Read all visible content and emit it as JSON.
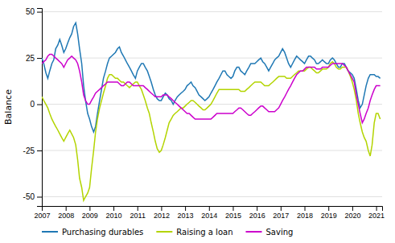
{
  "chart_data": {
    "type": "line",
    "ylabel": "Balance",
    "x": [
      2007.0,
      2007.08,
      2007.17,
      2007.25,
      2007.33,
      2007.42,
      2007.5,
      2007.58,
      2007.67,
      2007.75,
      2007.83,
      2007.92,
      2008.0,
      2008.08,
      2008.17,
      2008.25,
      2008.33,
      2008.42,
      2008.5,
      2008.58,
      2008.67,
      2008.75,
      2008.83,
      2008.92,
      2009.0,
      2009.08,
      2009.17,
      2009.25,
      2009.33,
      2009.42,
      2009.5,
      2009.58,
      2009.67,
      2009.75,
      2009.83,
      2009.92,
      2010.0,
      2010.08,
      2010.17,
      2010.25,
      2010.33,
      2010.42,
      2010.5,
      2010.58,
      2010.67,
      2010.75,
      2010.83,
      2010.92,
      2011.0,
      2011.08,
      2011.17,
      2011.25,
      2011.33,
      2011.42,
      2011.5,
      2011.58,
      2011.67,
      2011.75,
      2011.83,
      2011.92,
      2012.0,
      2012.08,
      2012.17,
      2012.25,
      2012.33,
      2012.42,
      2012.5,
      2012.58,
      2012.67,
      2012.75,
      2012.83,
      2012.92,
      2013.0,
      2013.08,
      2013.17,
      2013.25,
      2013.33,
      2013.42,
      2013.5,
      2013.58,
      2013.67,
      2013.75,
      2013.83,
      2013.92,
      2014.0,
      2014.08,
      2014.17,
      2014.25,
      2014.33,
      2014.42,
      2014.5,
      2014.58,
      2014.67,
      2014.75,
      2014.83,
      2014.92,
      2015.0,
      2015.08,
      2015.17,
      2015.25,
      2015.33,
      2015.42,
      2015.5,
      2015.58,
      2015.67,
      2015.75,
      2015.83,
      2015.92,
      2016.0,
      2016.08,
      2016.17,
      2016.25,
      2016.33,
      2016.42,
      2016.5,
      2016.58,
      2016.67,
      2016.75,
      2016.83,
      2016.92,
      2017.0,
      2017.08,
      2017.17,
      2017.25,
      2017.33,
      2017.42,
      2017.5,
      2017.58,
      2017.67,
      2017.75,
      2017.83,
      2017.92,
      2018.0,
      2018.08,
      2018.17,
      2018.25,
      2018.33,
      2018.42,
      2018.5,
      2018.58,
      2018.67,
      2018.75,
      2018.83,
      2018.92,
      2019.0,
      2019.08,
      2019.17,
      2019.25,
      2019.33,
      2019.42,
      2019.5,
      2019.58,
      2019.67,
      2019.75,
      2019.83,
      2019.92,
      2020.0,
      2020.08,
      2020.17,
      2020.25,
      2020.33,
      2020.42,
      2020.5,
      2020.58,
      2020.67,
      2020.75,
      2020.83,
      2020.92,
      2021.0,
      2021.08,
      2021.17
    ],
    "series": [
      {
        "name": "Purchasing durables",
        "color": "#1f78b4",
        "values": [
          25,
          22,
          17,
          14,
          18,
          22,
          24,
          30,
          32,
          35,
          32,
          28,
          30,
          33,
          36,
          38,
          42,
          44,
          38,
          30,
          22,
          10,
          2,
          -5,
          -8,
          -12,
          -15,
          -12,
          -5,
          2,
          8,
          14,
          18,
          22,
          25,
          26,
          27,
          28,
          30,
          31,
          28,
          26,
          24,
          22,
          20,
          18,
          16,
          14,
          18,
          20,
          22,
          22,
          20,
          18,
          15,
          12,
          8,
          5,
          3,
          2,
          2,
          4,
          6,
          5,
          3,
          2,
          0,
          2,
          4,
          5,
          6,
          7,
          8,
          10,
          11,
          12,
          10,
          9,
          7,
          5,
          4,
          3,
          2,
          3,
          4,
          6,
          8,
          10,
          12,
          14,
          16,
          18,
          18,
          16,
          15,
          14,
          15,
          18,
          20,
          20,
          18,
          17,
          16,
          18,
          20,
          22,
          22,
          22,
          23,
          24,
          25,
          23,
          22,
          20,
          18,
          20,
          22,
          24,
          25,
          26,
          28,
          30,
          28,
          25,
          22,
          20,
          22,
          24,
          26,
          25,
          24,
          23,
          22,
          24,
          26,
          26,
          25,
          24,
          22,
          22,
          23,
          24,
          23,
          22,
          22,
          24,
          25,
          24,
          22,
          20,
          20,
          22,
          22,
          20,
          18,
          17,
          16,
          14,
          8,
          2,
          -2,
          0,
          5,
          10,
          14,
          16,
          16,
          16,
          15,
          15,
          14
        ]
      },
      {
        "name": "Raising a loan",
        "color": "#b3d400",
        "values": [
          4,
          2,
          0,
          -2,
          -5,
          -8,
          -10,
          -12,
          -14,
          -16,
          -18,
          -20,
          -18,
          -16,
          -14,
          -16,
          -18,
          -22,
          -30,
          -40,
          -45,
          -52,
          -50,
          -48,
          -45,
          -35,
          -25,
          -15,
          -8,
          -2,
          2,
          6,
          10,
          14,
          16,
          16,
          15,
          14,
          14,
          13,
          12,
          12,
          11,
          10,
          9,
          10,
          11,
          12,
          12,
          10,
          8,
          5,
          2,
          -2,
          -5,
          -10,
          -15,
          -20,
          -24,
          -26,
          -25,
          -22,
          -18,
          -14,
          -10,
          -8,
          -6,
          -5,
          -4,
          -3,
          -2,
          -2,
          -1,
          0,
          1,
          2,
          2,
          1,
          0,
          -1,
          -2,
          -3,
          -3,
          -2,
          -1,
          0,
          2,
          4,
          6,
          8,
          8,
          8,
          8,
          8,
          8,
          8,
          8,
          8,
          8,
          8,
          7,
          7,
          7,
          8,
          9,
          10,
          11,
          12,
          12,
          12,
          12,
          11,
          10,
          10,
          10,
          11,
          12,
          13,
          14,
          15,
          15,
          15,
          15,
          14,
          14,
          14,
          15,
          16,
          17,
          18,
          18,
          18,
          18,
          19,
          20,
          20,
          19,
          18,
          17,
          17,
          18,
          19,
          19,
          19,
          20,
          22,
          23,
          22,
          20,
          19,
          19,
          20,
          20,
          20,
          18,
          15,
          12,
          8,
          2,
          -5,
          -10,
          -15,
          -18,
          -20,
          -25,
          -28,
          -22,
          -10,
          -5,
          -5,
          -8
        ]
      },
      {
        "name": "Saving",
        "color": "#cc00cc",
        "values": [
          22,
          23,
          24,
          26,
          27,
          27,
          26,
          25,
          24,
          23,
          22,
          20,
          22,
          24,
          25,
          26,
          25,
          24,
          22,
          18,
          12,
          5,
          2,
          0,
          0,
          2,
          4,
          6,
          7,
          8,
          9,
          10,
          11,
          12,
          12,
          12,
          12,
          12,
          12,
          11,
          10,
          10,
          11,
          12,
          12,
          11,
          10,
          10,
          10,
          10,
          10,
          10,
          9,
          8,
          7,
          6,
          5,
          4,
          4,
          4,
          4,
          5,
          5,
          5,
          4,
          3,
          2,
          1,
          0,
          -1,
          -2,
          -3,
          -4,
          -5,
          -5,
          -6,
          -7,
          -8,
          -8,
          -8,
          -8,
          -8,
          -8,
          -8,
          -8,
          -8,
          -7,
          -6,
          -5,
          -5,
          -5,
          -5,
          -5,
          -5,
          -5,
          -5,
          -5,
          -4,
          -3,
          -2,
          -2,
          -3,
          -4,
          -5,
          -6,
          -6,
          -5,
          -4,
          -3,
          -2,
          -1,
          -1,
          -2,
          -3,
          -4,
          -4,
          -4,
          -4,
          -3,
          -2,
          0,
          2,
          4,
          6,
          8,
          10,
          12,
          14,
          16,
          17,
          18,
          18,
          19,
          20,
          20,
          20,
          20,
          20,
          19,
          19,
          19,
          20,
          20,
          20,
          20,
          21,
          22,
          22,
          22,
          22,
          22,
          22,
          21,
          20,
          18,
          16,
          14,
          12,
          5,
          0,
          -5,
          -10,
          -8,
          -5,
          -2,
          2,
          5,
          8,
          10,
          10,
          10
        ]
      }
    ],
    "xlim": [
      2007.0,
      2021.25
    ],
    "xticks": [
      2007,
      2008,
      2009,
      2010,
      2011,
      2012,
      2013,
      2014,
      2015,
      2016,
      2017,
      2018,
      2019,
      2020,
      2021
    ],
    "ylim": [
      -55,
      52
    ],
    "yticks": [
      -50,
      -25,
      0,
      25,
      50
    ],
    "grid": true,
    "legend": "lower left"
  }
}
